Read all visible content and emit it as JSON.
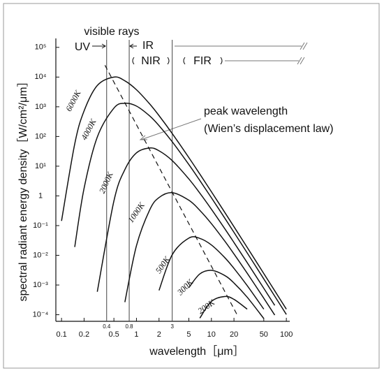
{
  "chart_data": {
    "type": "line",
    "x_label": "wavelength［μm］",
    "y_label": "spectral radiant energy density［W/cm²/μm］",
    "log_x": true,
    "log_y": true,
    "xlim": [
      0.084,
      111
    ],
    "ylim": [
      6e-05,
      200000
    ],
    "xticks": [
      0.1,
      0.2,
      0.5,
      1,
      2,
      5,
      10,
      20,
      50,
      100
    ],
    "yticks": [
      {
        "value": 100000,
        "label": "10⁵"
      },
      {
        "value": 10000,
        "label": "10⁴"
      },
      {
        "value": 1000,
        "label": "10³"
      },
      {
        "value": 100,
        "label": "10²"
      },
      {
        "value": 10,
        "label": "10¹"
      },
      1,
      {
        "value": 0.1,
        "label": "10⁻¹"
      },
      {
        "value": 0.01,
        "label": "10⁻²"
      },
      {
        "value": 0.001,
        "label": "10⁻³"
      },
      {
        "value": 0.0001,
        "label": "10⁻⁴"
      }
    ],
    "x": [
      0.1,
      0.15,
      0.2,
      0.3,
      0.5,
      0.7,
      1,
      1.5,
      2,
      3,
      5,
      7,
      10,
      15,
      20,
      30,
      50,
      70,
      100
    ],
    "series": [
      {
        "name": "6000K",
        "color": "#111111",
        "values": [
          0.144,
          56,
          726,
          5204,
          9975,
          7482,
          3742,
          1248,
          504.5,
          125.8,
          19.45,
          5.448,
          1.381,
          0.2841,
          0.0918,
          0.01851,
          0.002436,
          0.000639,
          0.0001542
        ]
      },
      {
        "name": "4000K",
        "color": "#111111",
        "values": [
          null,
          0.019,
          1.807,
          95.6,
          900,
          1313,
          1055,
          492.7,
          231.9,
          66.5,
          11.37,
          3.313,
          0.8644,
          0.1818,
          0.0593,
          0.01209,
          0.001605,
          0.000422,
          0.0001022
        ]
      },
      {
        "name": "2000K",
        "color": "#111111",
        "values": [
          null,
          null,
          null,
          0.000593,
          0.675,
          7.66,
          28.13,
          41.06,
          32.95,
          15.4,
          3.722,
          1.24,
          0.3554,
          0.0801,
          0.027,
          0.00568,
          0.000774,
          0.000206,
          null
        ]
      },
      {
        "name": "1000K",
        "color": "#111111",
        "values": [
          null,
          null,
          null,
          null,
          null,
          0.000265,
          0.0211,
          0.3363,
          0.879,
          1.283,
          0.7138,
          0.3269,
          0.1164,
          0.0306,
          0.0111,
          0.002502,
          0.000359,
          9.75e-05,
          null
        ]
      },
      {
        "name": "500K",
        "color": "#111111",
        "values": [
          null,
          null,
          null,
          null,
          null,
          null,
          null,
          null,
          0.000659,
          0.01051,
          0.03802,
          0.0371,
          0.02231,
          0.00848,
          0.003635,
          0.000957,
          0.0001539,
          null,
          null
        ]
      },
      {
        "name": "300K",
        "color": "#111111",
        "values": [
          null,
          null,
          null,
          null,
          null,
          null,
          null,
          null,
          null,
          null,
          0.000817,
          0.002358,
          0.003118,
          0.0021,
          0.001169,
          0.00039,
          7.44e-05,
          null,
          null
        ]
      },
      {
        "name": "200K",
        "color": "#111111",
        "values": [
          null,
          null,
          null,
          null,
          null,
          null,
          null,
          null,
          null,
          null,
          null,
          7.66e-05,
          0.000281,
          0.000411,
          0.000329,
          0.000154,
          null,
          null,
          null
        ]
      }
    ],
    "boundaries": [
      0.4,
      0.8,
      3
    ],
    "peak_line": {
      "x": [
        0.38,
        22
      ],
      "values": [
        25000,
        0.0001
      ]
    },
    "annotations": {
      "visible": "visible rays",
      "uv": "UV",
      "ir": "IR",
      "nir": "NIR",
      "fir": "FIR",
      "peak": "peak wavelength",
      "peak_law": "(Wien’s displacement law)"
    }
  }
}
